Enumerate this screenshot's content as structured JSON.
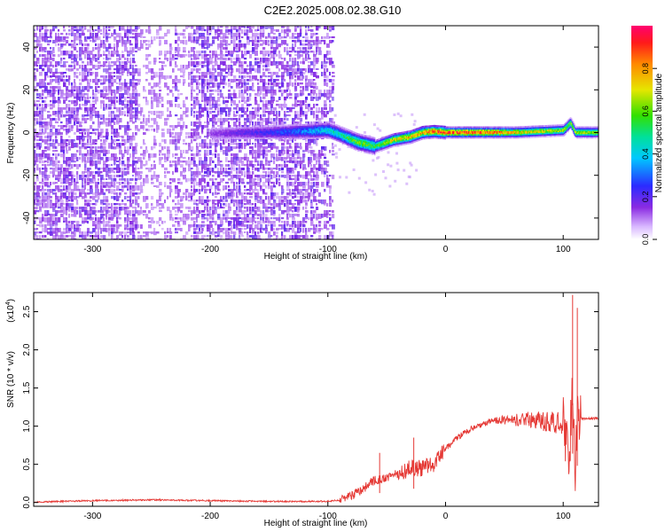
{
  "title": "C2E2.2025.008.02.38.G10",
  "chart_data": [
    {
      "type": "heatmap",
      "xlabel": "Height of straight line (km)",
      "ylabel": "Frequency (Hz)",
      "xlim": [
        -350,
        130
      ],
      "ylim": [
        -50,
        50
      ],
      "xticks": [
        -300,
        -200,
        -100,
        0,
        100
      ],
      "yticks": [
        -40,
        -20,
        0,
        20,
        40
      ],
      "colorbar": {
        "label": "Normalized spectral amplitude",
        "range": [
          0,
          1
        ],
        "ticks": [
          "0.0",
          "0.2",
          "0.4",
          "0.6",
          "0.8"
        ]
      },
      "noise_region_x": [
        -350,
        -95
      ],
      "signal_ridge": [
        [
          -200,
          0.0,
          0.15
        ],
        [
          -150,
          0.5,
          0.25
        ],
        [
          -120,
          1.0,
          0.35
        ],
        [
          -100,
          1.5,
          0.45
        ],
        [
          -90,
          -0.5,
          0.5
        ],
        [
          -75,
          -4.0,
          0.65
        ],
        [
          -60,
          -6.0,
          0.6
        ],
        [
          -45,
          -3.0,
          0.75
        ],
        [
          -30,
          -1.5,
          0.8
        ],
        [
          -20,
          0.5,
          0.85
        ],
        [
          -10,
          1.0,
          0.9
        ],
        [
          0,
          0.5,
          0.95
        ],
        [
          20,
          0.5,
          0.95
        ],
        [
          40,
          0.5,
          0.9
        ],
        [
          60,
          0.5,
          0.8
        ],
        [
          80,
          1.0,
          0.75
        ],
        [
          100,
          1.5,
          0.7
        ],
        [
          106,
          5.0,
          0.65
        ],
        [
          110,
          0.5,
          0.7
        ],
        [
          130,
          0.5,
          0.7
        ]
      ]
    },
    {
      "type": "line",
      "xlabel": "Height of straight line (km)",
      "ylabel": "SNR (10 * v/v)",
      "scale_label": "(x10",
      "scale_exponent": "4",
      "xlim": [
        -350,
        130
      ],
      "ylim": [
        -0.05,
        2.75
      ],
      "xticks": [
        -300,
        -200,
        -100,
        0,
        100
      ],
      "yticks": [
        "0.0",
        "0.5",
        "1.0",
        "1.5",
        "2.0",
        "2.5"
      ],
      "color": "#e53935",
      "x": [
        -350,
        -300,
        -250,
        -200,
        -150,
        -100,
        -90,
        -80,
        -70,
        -60,
        -50,
        -40,
        -30,
        -20,
        -10,
        0,
        10,
        20,
        30,
        40,
        50,
        60,
        70,
        80,
        90,
        100,
        105,
        108,
        110,
        112,
        115,
        120,
        130
      ],
      "y": [
        0.0,
        0.02,
        0.03,
        0.02,
        0.01,
        0.01,
        0.03,
        0.08,
        0.18,
        0.3,
        0.32,
        0.38,
        0.45,
        0.45,
        0.5,
        0.7,
        0.85,
        0.95,
        1.02,
        1.07,
        1.08,
        1.08,
        1.08,
        1.07,
        1.05,
        1.05,
        0.5,
        1.6,
        0.3,
        1.2,
        1.1,
        1.1,
        1.1
      ],
      "spikes": [
        [
          -56,
          0.65
        ],
        [
          -27,
          0.85
        ],
        [
          108,
          2.72
        ],
        [
          112,
          2.55
        ]
      ]
    }
  ]
}
